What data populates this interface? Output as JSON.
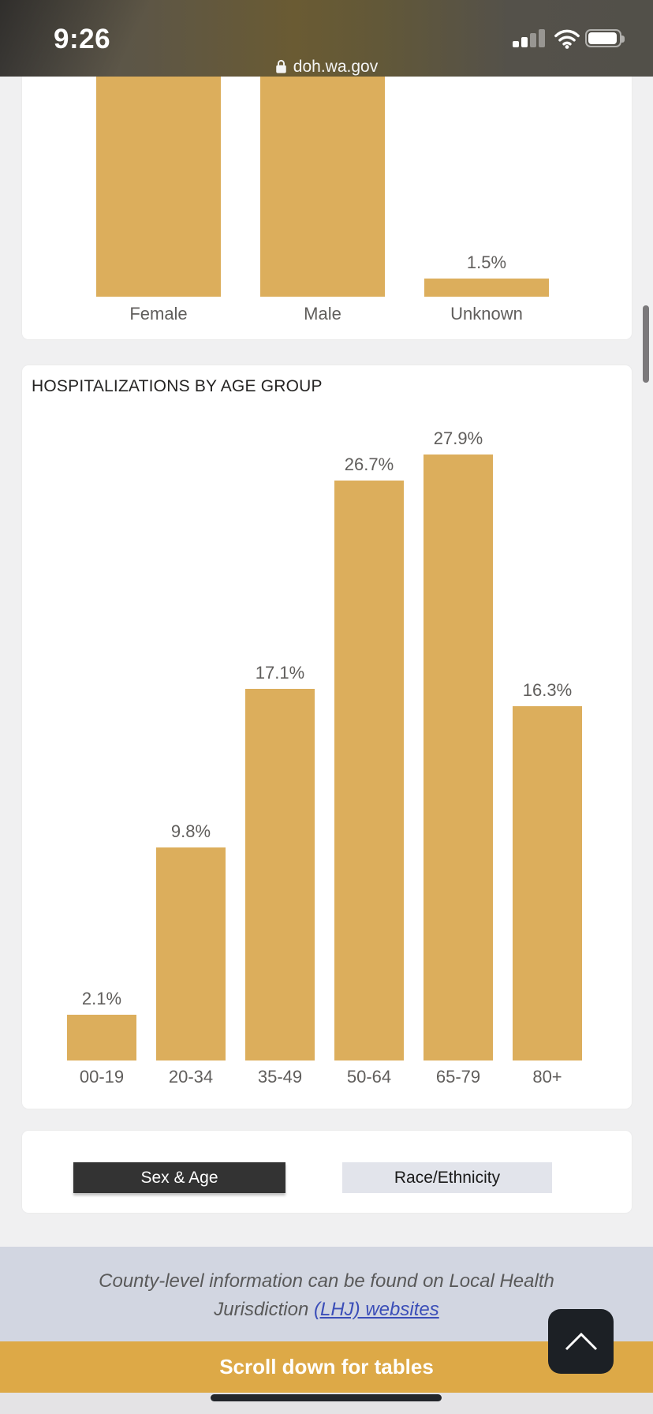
{
  "status_bar": {
    "time": "9:26",
    "url": "doh.wa.gov"
  },
  "chart_data": [
    {
      "id": "sex",
      "type": "bar",
      "title": "",
      "categories": [
        "Female",
        "Male",
        "Unknown"
      ],
      "values": [
        null,
        null,
        1.5
      ],
      "value_labels": [
        "",
        "",
        "1.5%"
      ],
      "note": "Female and Male bars are cut off at the top of the viewport; their value labels are not visible",
      "grid": false,
      "bar_color": "#DCAE5C"
    },
    {
      "id": "age",
      "type": "bar",
      "title": "HOSPITALIZATIONS BY AGE GROUP",
      "categories": [
        "00-19",
        "20-34",
        "35-49",
        "50-64",
        "65-79",
        "80+"
      ],
      "values": [
        2.1,
        9.8,
        17.1,
        26.7,
        27.9,
        16.3
      ],
      "value_labels": [
        "2.1%",
        "9.8%",
        "17.1%",
        "26.7%",
        "27.9%",
        "16.3%"
      ],
      "grid": false,
      "ylim": [
        0,
        30
      ],
      "bar_color": "#DCAE5C"
    }
  ],
  "toggle_buttons": [
    {
      "label": "Sex & Age",
      "selected": true
    },
    {
      "label": "Race/Ethnicity",
      "selected": false
    }
  ],
  "footer": {
    "line1": "County-level information can be found on Local Health",
    "line2_prefix": "Jurisdiction ",
    "link_text": "(LHJ) websites"
  },
  "banner": {
    "text": "Scroll down for tables"
  },
  "colors": {
    "bar": "#DCAE5C",
    "banner_bg": "#DDA947",
    "footer_bg": "#D2D6E1",
    "link": "#3B4EB8",
    "selected_button_bg": "#333333",
    "unselected_button_bg": "#E2E4EB",
    "label_gray": "#605E5C",
    "title_text": "#252423"
  }
}
